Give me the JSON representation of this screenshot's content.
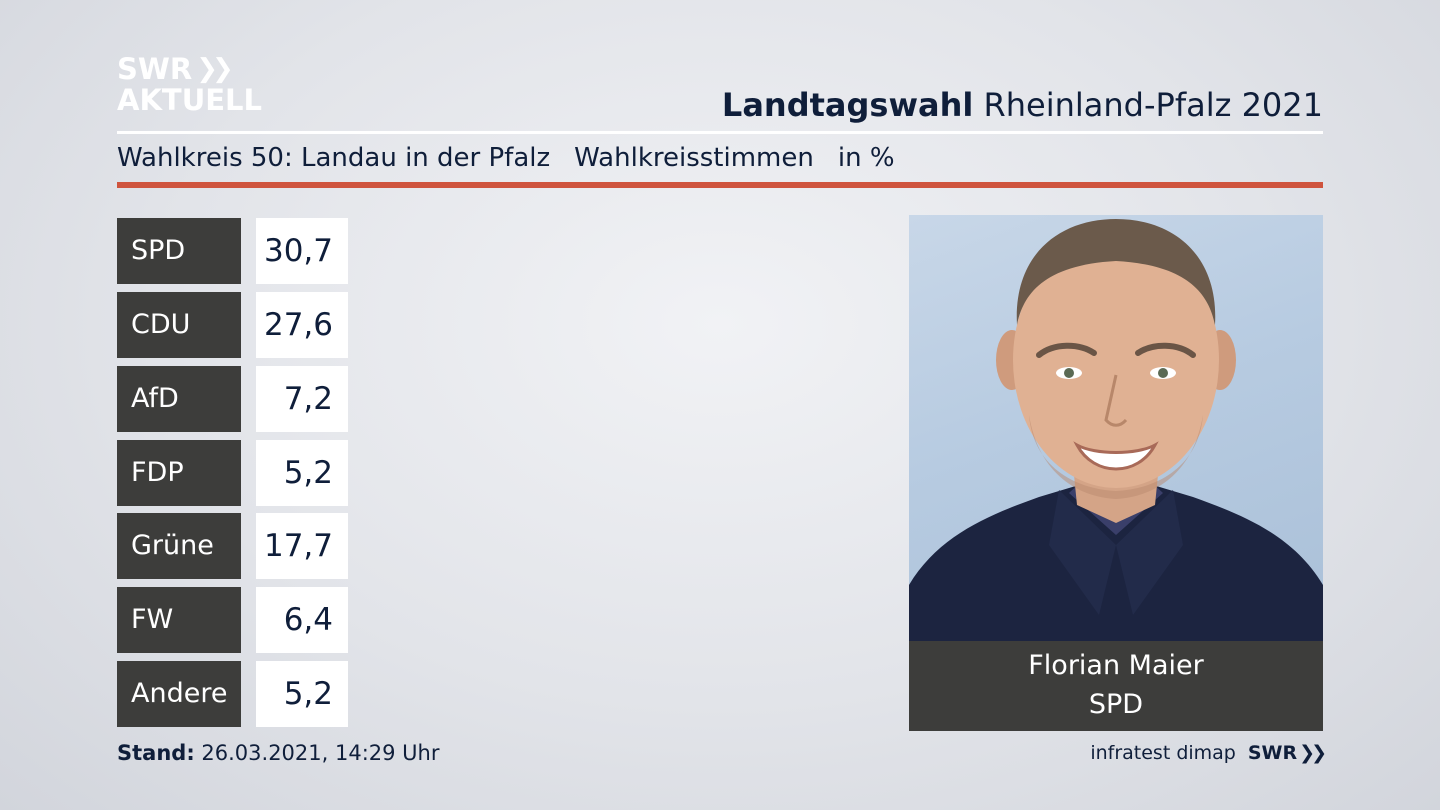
{
  "logo": {
    "line1": "SWR",
    "line2": "AKTUELL"
  },
  "header": {
    "title_bold": "Landtagswahl",
    "title_rest": " Rheinland-Pfalz 2021",
    "wahlkreis": "Wahlkreis 50: Landau in der Pfalz",
    "stimmen": "Wahlkreisstimmen",
    "unit": "in %"
  },
  "results": [
    {
      "party": "SPD",
      "value": "30,7"
    },
    {
      "party": "CDU",
      "value": "27,6"
    },
    {
      "party": "AfD",
      "value": "7,2"
    },
    {
      "party": "FDP",
      "value": "5,2"
    },
    {
      "party": "Grüne",
      "value": "17,7"
    },
    {
      "party": "FW",
      "value": "6,4"
    },
    {
      "party": "Andere",
      "value": "5,2"
    }
  ],
  "winner": {
    "name": "Florian Maier",
    "party": "SPD"
  },
  "footer": {
    "stand_label": "Stand:",
    "stand_value": " 26.03.2021, 14:29 Uhr",
    "source": "infratest dimap",
    "brand": "SWR"
  },
  "colors": {
    "accent_red": "#cf543e",
    "dark_panel": "#3d3d3b",
    "navy_text": "#0f1e3a"
  }
}
